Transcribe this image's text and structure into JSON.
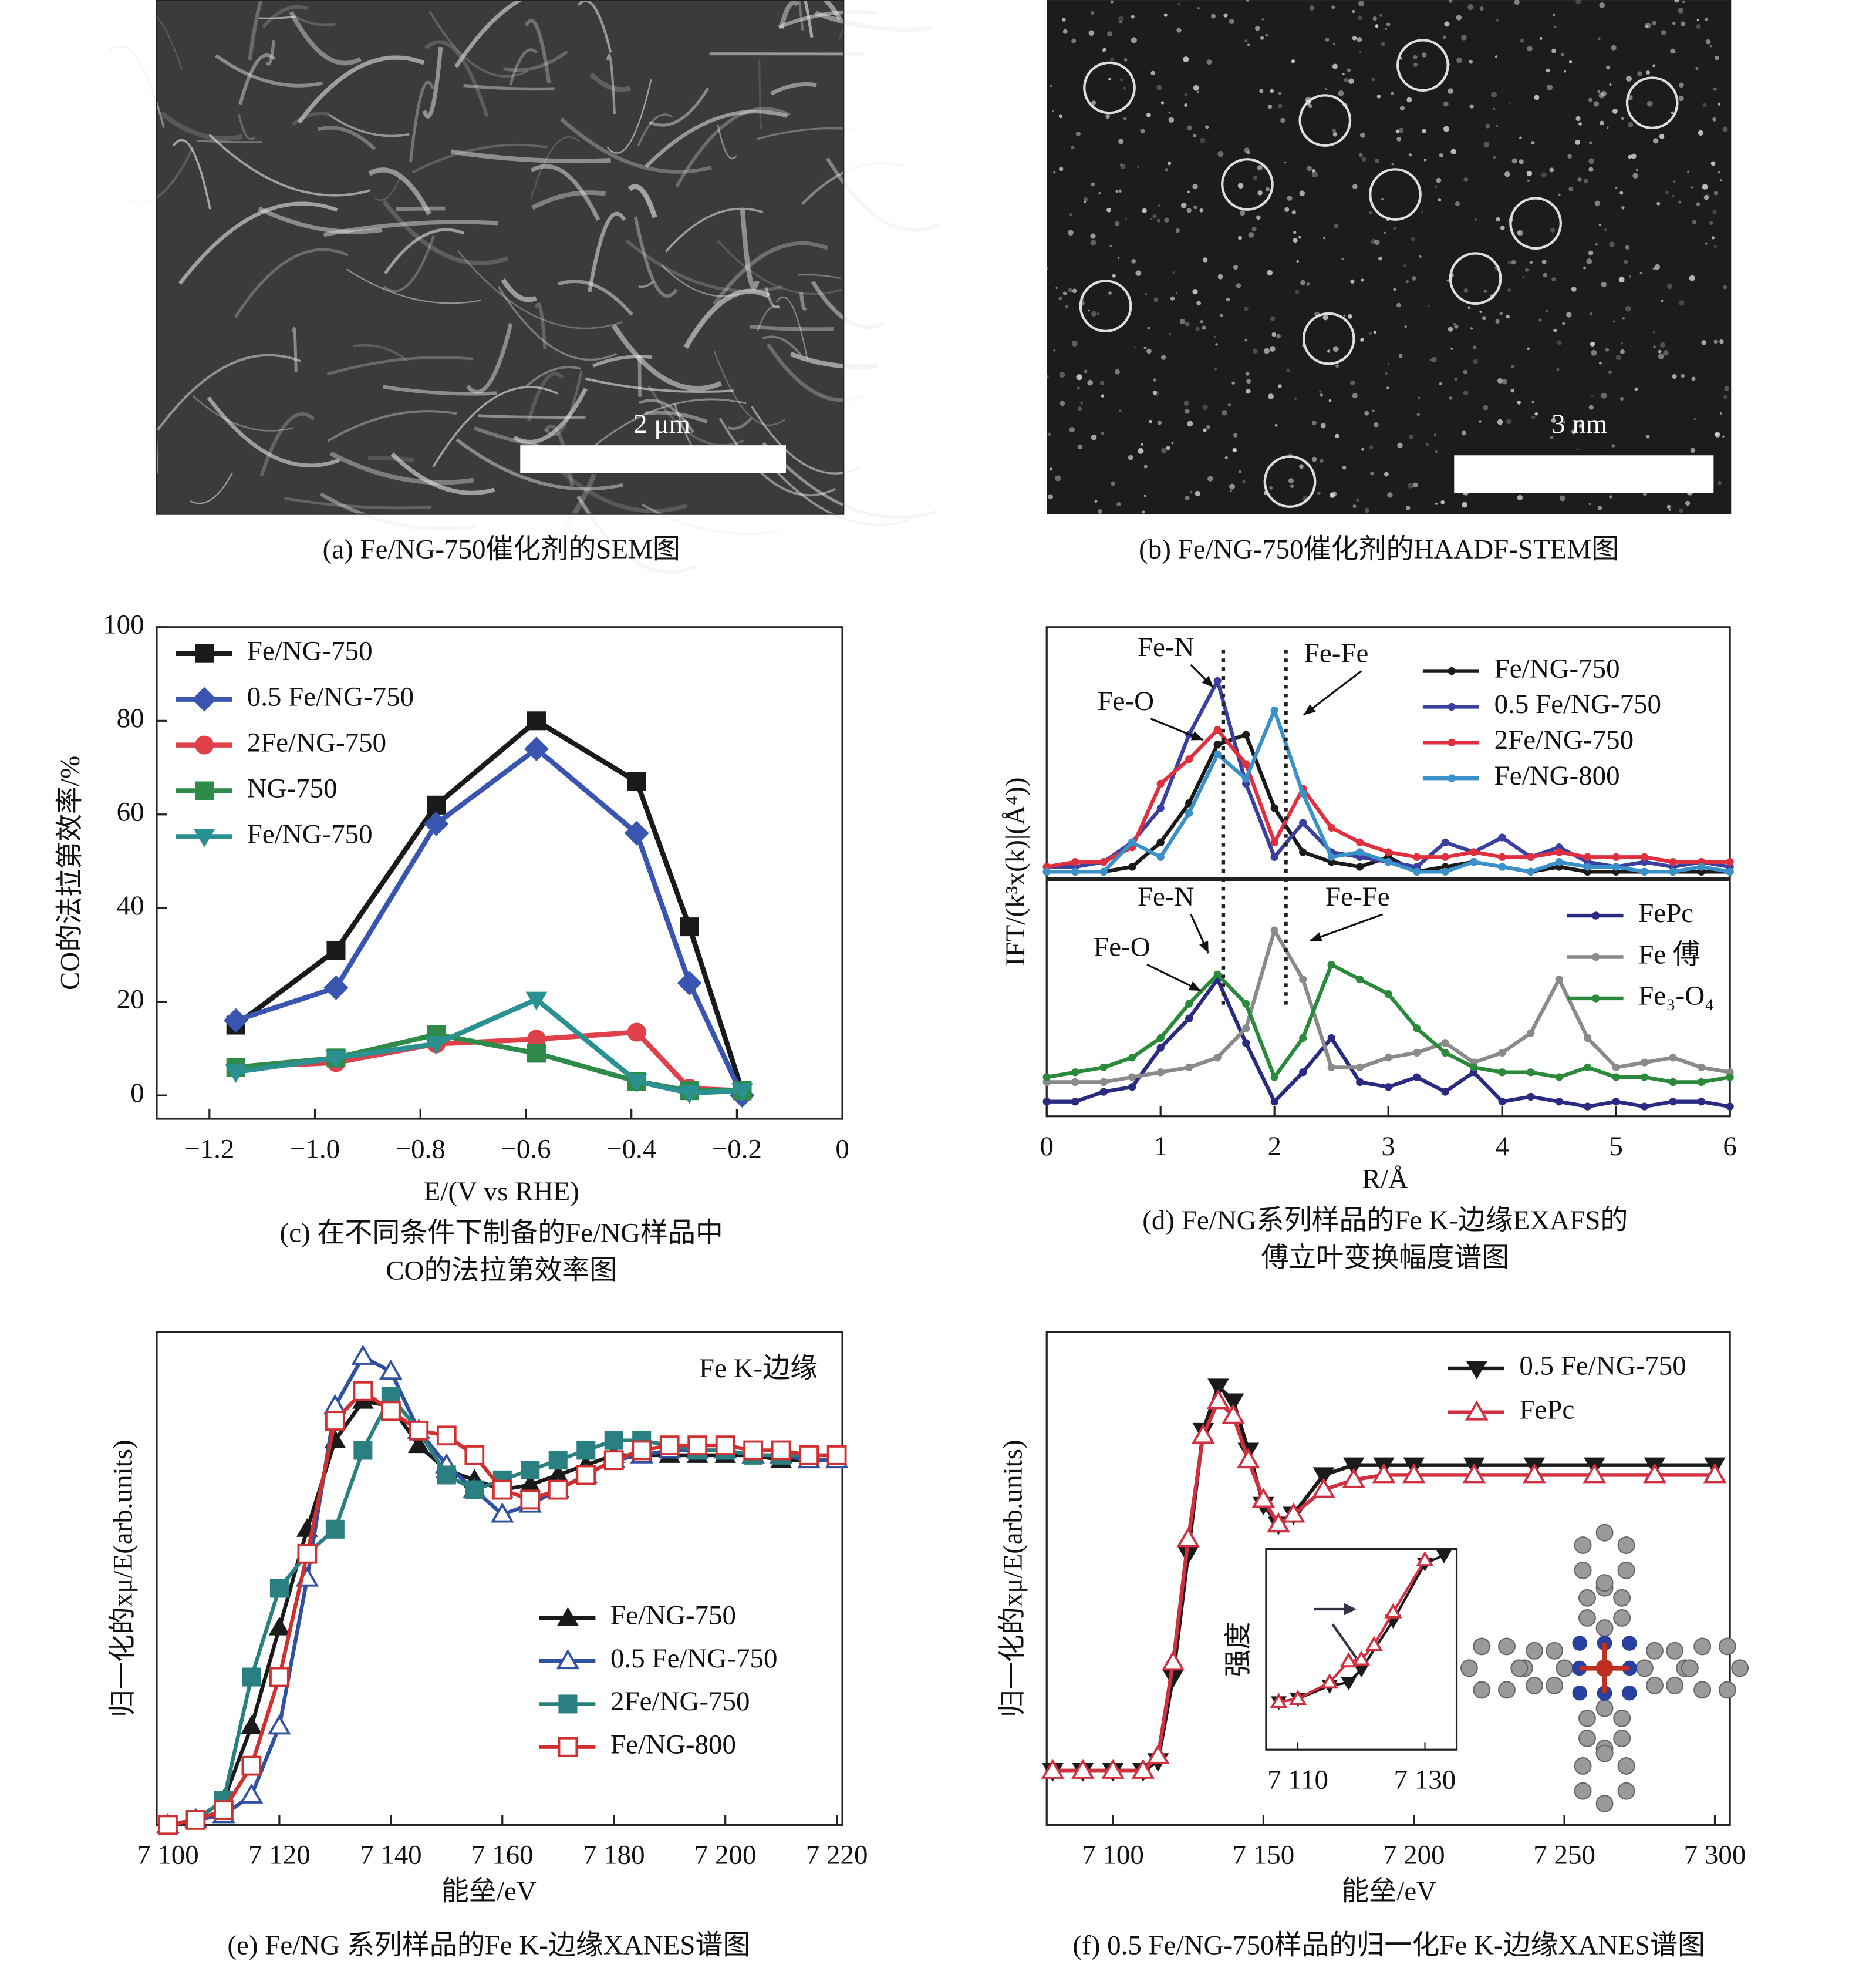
{
  "images": [
    {
      "caption": "(a) Fe/NG-750催化剂的SEM图",
      "scale_bar": "2 μm"
    },
    {
      "caption": "(b) Fe/NG-750催化剂的HAADF-STEM图",
      "scale_bar": "3 nm"
    }
  ],
  "chart_data": [
    {
      "type": "line",
      "caption": [
        "(c) 在不同条件下制备的Fe/NG样品中",
        "CO的法拉第效率图"
      ],
      "xlabel": "E/(V vs RHE)",
      "ylabel": "CO的法拉第效率/%",
      "xlim": [
        -1.3,
        0
      ],
      "ylim": [
        -5,
        100
      ],
      "xticks": [
        {
          "value": -1.2,
          "label": "−1.2"
        },
        {
          "value": -1.0,
          "label": "−1.0"
        },
        {
          "value": -0.8,
          "label": "−0.8"
        },
        {
          "value": -0.6,
          "label": "−0.6"
        },
        {
          "value": -0.4,
          "label": "−0.4"
        },
        {
          "value": -0.2,
          "label": "−0.2"
        },
        0
      ],
      "yticks": [
        0,
        20,
        40,
        60,
        80,
        100
      ],
      "x": [
        -1.15,
        -0.96,
        -0.77,
        -0.58,
        -0.39,
        -0.29,
        -0.19
      ],
      "legend": "upper left",
      "series": [
        {
          "name": "Fe/NG-750",
          "color": "#1a1a1a",
          "marker": "square",
          "values": [
            15,
            31,
            62,
            80,
            67,
            36,
            1
          ]
        },
        {
          "name": "0.5 Fe/NG-750",
          "color": "#3a55b0",
          "marker": "diamond",
          "values": [
            16,
            23,
            58,
            74,
            56,
            24,
            0
          ]
        },
        {
          "name": "2Fe/NG-750",
          "color": "#e0404a",
          "marker": "circle",
          "values": [
            6,
            7,
            11,
            12,
            13.5,
            1.5,
            1
          ]
        },
        {
          "name": "NG-750",
          "color": "#2e8b4a",
          "marker": "square",
          "values": [
            6,
            8,
            13,
            9,
            3,
            1,
            1
          ]
        },
        {
          "name": "Fe/NG-750",
          "color": "#2a9090",
          "marker": "triangle-down",
          "values": [
            5,
            8,
            11,
            20.5,
            3,
            0.5,
            1
          ]
        }
      ]
    },
    {
      "type": "line",
      "caption": [
        "(d) Fe/NG系列样品的Fe K-边缘EXAFS的",
        "傅立叶变换幅度谱图"
      ],
      "xlabel": "R/Å",
      "ylabel": "IFT/(k³x(k)|(Å⁴))",
      "xlim": [
        0,
        6
      ],
      "ylim": [
        0,
        10
      ],
      "xticks": [
        0,
        1,
        2,
        3,
        4,
        5,
        6
      ],
      "vlines": [
        1.55,
        2.1
      ],
      "hlines": [
        4.85
      ],
      "annotations": [
        "Fe-N",
        "Fe-O",
        "Fe-Fe",
        "Fe-N",
        "Fe-O",
        "Fe-Fe"
      ],
      "x": [
        0,
        0.25,
        0.5,
        0.75,
        1,
        1.25,
        1.5,
        1.75,
        2,
        2.25,
        2.5,
        2.75,
        3,
        3.25,
        3.5,
        3.75,
        4,
        4.25,
        4.5,
        4.75,
        5,
        5.25,
        5.5,
        5.75,
        6
      ],
      "series": [
        {
          "name": "Fe/NG-750",
          "color": "#1a1a1a",
          "marker": "dot",
          "values": [
            5.0,
            5.0,
            5.0,
            5.1,
            5.6,
            6.4,
            7.6,
            7.8,
            6.3,
            5.4,
            5.2,
            5.1,
            5.3,
            5.0,
            5.1,
            5.2,
            5.1,
            5.0,
            5.1,
            5.0,
            5.0,
            5.0,
            5.0,
            5.0,
            5.0
          ]
        },
        {
          "name": "0.5 Fe/NG-750",
          "color": "#3a3fa0",
          "marker": "dot",
          "values": [
            5.1,
            5.1,
            5.2,
            5.6,
            6.3,
            7.8,
            8.9,
            6.8,
            5.3,
            6.0,
            5.4,
            5.3,
            5.2,
            5.1,
            5.6,
            5.4,
            5.7,
            5.3,
            5.5,
            5.2,
            5.1,
            5.2,
            5.1,
            5.2,
            5.1
          ]
        },
        {
          "name": "2Fe/NG-750",
          "color": "#e03040",
          "marker": "dot",
          "values": [
            5.1,
            5.2,
            5.2,
            5.5,
            6.8,
            7.3,
            7.9,
            7.2,
            5.6,
            6.7,
            5.9,
            5.6,
            5.4,
            5.3,
            5.3,
            5.4,
            5.3,
            5.3,
            5.4,
            5.3,
            5.3,
            5.3,
            5.2,
            5.2,
            5.2
          ]
        },
        {
          "name": "Fe/NG-800",
          "color": "#3a90c8",
          "marker": "dot",
          "values": [
            5.0,
            5.0,
            5.0,
            5.6,
            5.3,
            6.2,
            7.4,
            6.9,
            8.3,
            6.6,
            5.3,
            5.4,
            5.2,
            5.0,
            5.0,
            5.2,
            5.1,
            5.0,
            5.2,
            5.1,
            5.1,
            5.0,
            5.0,
            5.1,
            5.0
          ]
        },
        {
          "name": "FePc",
          "color": "#2a2a80",
          "marker": "dot",
          "values": [
            0.3,
            0.3,
            0.5,
            0.6,
            1.4,
            2.0,
            2.8,
            1.5,
            0.3,
            0.9,
            1.6,
            0.7,
            0.6,
            0.8,
            0.5,
            0.9,
            0.3,
            0.4,
            0.3,
            0.2,
            0.3,
            0.2,
            0.3,
            0.3,
            0.2
          ]
        },
        {
          "name": "Fe 傅",
          "color": "#8a8a8a",
          "marker": "dot",
          "values": [
            0.7,
            0.7,
            0.7,
            0.8,
            0.9,
            1.0,
            1.2,
            1.8,
            3.8,
            2.8,
            1.0,
            1.0,
            1.2,
            1.3,
            1.5,
            1.1,
            1.3,
            1.7,
            2.8,
            1.6,
            1.0,
            1.1,
            1.2,
            1.0,
            0.9
          ]
        },
        {
          "name": "Fe₃-O₄",
          "color": "#2a8a3a",
          "marker": "dot",
          "values": [
            0.8,
            0.9,
            1.0,
            1.2,
            1.6,
            2.3,
            2.9,
            2.3,
            0.8,
            1.6,
            3.1,
            2.8,
            2.5,
            1.8,
            1.3,
            1.0,
            0.9,
            0.9,
            0.8,
            1.0,
            0.8,
            0.8,
            0.7,
            0.7,
            0.8
          ]
        }
      ]
    },
    {
      "type": "line",
      "caption": [
        "(e) Fe/NG 系列样品的Fe K-边缘XANES谱图"
      ],
      "xlabel": "能垒/eV",
      "ylabel": "归一化的xμ/E(arb.units)",
      "annotations": [
        "Fe K-边缘"
      ],
      "xlim": [
        7098,
        7221
      ],
      "ylim": [
        0,
        1
      ],
      "xticks": [
        {
          "value": 7100,
          "label": "7 100"
        },
        {
          "value": 7120,
          "label": "7 120"
        },
        {
          "value": 7140,
          "label": "7 140"
        },
        {
          "value": 7160,
          "label": "7 160"
        },
        {
          "value": 7180,
          "label": "7 180"
        },
        {
          "value": 7200,
          "label": "7 200"
        },
        {
          "value": 7220,
          "label": "7 220"
        }
      ],
      "x": [
        7100,
        7105,
        7110,
        7115,
        7120,
        7125,
        7130,
        7135,
        7140,
        7145,
        7150,
        7155,
        7160,
        7165,
        7170,
        7175,
        7180,
        7185,
        7190,
        7195,
        7200,
        7205,
        7210,
        7215,
        7220
      ],
      "legend": "lower right",
      "series": [
        {
          "name": "Fe/NG-750",
          "color": "#1a1a1a",
          "marker": "triangle-up",
          "values": [
            0.0,
            0.01,
            0.05,
            0.2,
            0.4,
            0.6,
            0.78,
            0.86,
            0.85,
            0.77,
            0.72,
            0.7,
            0.68,
            0.69,
            0.71,
            0.73,
            0.75,
            0.75,
            0.75,
            0.75,
            0.75,
            0.75,
            0.74,
            0.74,
            0.74
          ]
        },
        {
          "name": "0.5 Fe/NG-750",
          "color": "#3050a0",
          "marker": "triangle-up-open",
          "values": [
            0,
            0.01,
            0.02,
            0.06,
            0.2,
            0.5,
            0.85,
            0.95,
            0.92,
            0.8,
            0.73,
            0.68,
            0.63,
            0.65,
            0.68,
            0.71,
            0.74,
            0.75,
            0.76,
            0.76,
            0.76,
            0.75,
            0.75,
            0.74,
            0.74
          ]
        },
        {
          "name": "2Fe/NG-750",
          "color": "#2a8080",
          "marker": "square",
          "values": [
            0,
            0.01,
            0.05,
            0.3,
            0.48,
            0.55,
            0.6,
            0.76,
            0.87,
            0.8,
            0.71,
            0.68,
            0.7,
            0.72,
            0.74,
            0.76,
            0.78,
            0.78,
            0.77,
            0.76,
            0.76,
            0.75,
            0.75,
            0.75,
            0.75
          ]
        },
        {
          "name": "Fe/NG-800",
          "color": "#d03030",
          "marker": "square-open",
          "values": [
            0,
            0.01,
            0.03,
            0.12,
            0.3,
            0.55,
            0.82,
            0.88,
            0.84,
            0.8,
            0.79,
            0.75,
            0.68,
            0.66,
            0.68,
            0.71,
            0.74,
            0.76,
            0.77,
            0.77,
            0.77,
            0.76,
            0.76,
            0.75,
            0.75
          ]
        }
      ]
    },
    {
      "type": "line",
      "caption": [
        "(f) 0.5 Fe/NG-750样品的归一化Fe K-边缘XANES谱图"
      ],
      "xlabel": "能垒/eV",
      "ylabel": "归一化的xμ/E(arb.units)",
      "xlim": [
        7078,
        7305
      ],
      "ylim": [
        0,
        1
      ],
      "xticks": [
        {
          "value": 7100,
          "label": "7 100"
        },
        {
          "value": 7150,
          "label": "7 150"
        },
        {
          "value": 7200,
          "label": "7 200"
        },
        {
          "value": 7250,
          "label": "7 250"
        },
        {
          "value": 7300,
          "label": "7 300"
        }
      ],
      "x": [
        7080,
        7090,
        7100,
        7110,
        7115,
        7120,
        7125,
        7130,
        7135,
        7140,
        7145,
        7150,
        7155,
        7160,
        7170,
        7180,
        7190,
        7200,
        7220,
        7240,
        7260,
        7280,
        7300
      ],
      "legend": "upper right",
      "series": [
        {
          "name": "0.5 Fe/NG-750",
          "color": "#1a1a1a",
          "marker": "triangle-down",
          "values": [
            0.11,
            0.11,
            0.11,
            0.11,
            0.13,
            0.3,
            0.55,
            0.8,
            0.89,
            0.86,
            0.76,
            0.65,
            0.61,
            0.63,
            0.71,
            0.73,
            0.73,
            0.73,
            0.73,
            0.73,
            0.73,
            0.73,
            0.73
          ]
        },
        {
          "name": "FePc",
          "color": "#d03040",
          "marker": "triangle-up-open",
          "values": [
            0.11,
            0.11,
            0.11,
            0.11,
            0.14,
            0.33,
            0.58,
            0.79,
            0.86,
            0.83,
            0.74,
            0.66,
            0.61,
            0.63,
            0.68,
            0.7,
            0.71,
            0.71,
            0.71,
            0.71,
            0.71,
            0.71,
            0.71
          ]
        }
      ],
      "inset": {
        "ylabel": "强度",
        "xlim": [
          7105,
          7135
        ],
        "ylim": [
          0,
          1
        ],
        "xticks": [
          {
            "value": 7110,
            "label": "7 110"
          },
          {
            "value": 7130,
            "label": "7 130"
          }
        ],
        "series": [
          {
            "color": "#1a1a1a",
            "marker": "triangle-down",
            "x": [
              7107,
              7110,
              7115,
              7118,
              7120,
              7125,
              7130,
              7133
            ],
            "values": [
              0.1,
              0.12,
              0.2,
              0.22,
              0.3,
              0.6,
              0.95,
              1.0
            ]
          },
          {
            "color": "#d03040",
            "marker": "triangle-up-open",
            "x": [
              7107,
              7110,
              7115,
              7118,
              7120,
              7122,
              7125,
              7130
            ],
            "values": [
              0.1,
              0.12,
              0.22,
              0.35,
              0.36,
              0.45,
              0.65,
              0.97
            ]
          }
        ]
      }
    }
  ]
}
